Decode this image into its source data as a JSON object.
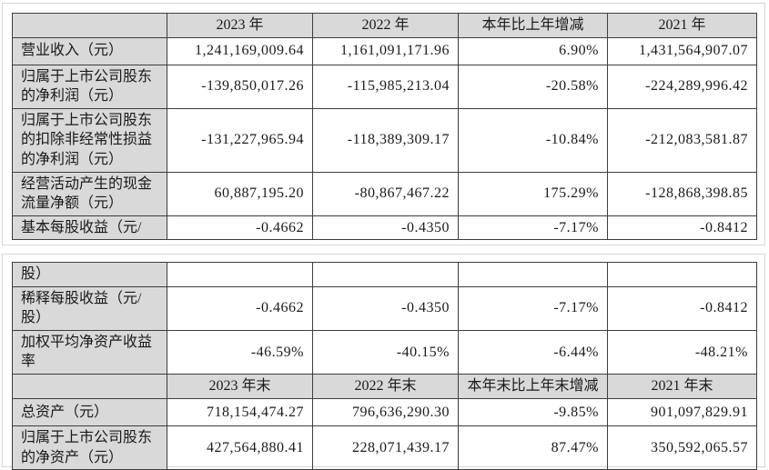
{
  "colors": {
    "header_cell_bg": "#d9d9d9",
    "table_border": "#3d3d3d",
    "page_frame_border": "#d6d6d6",
    "page_bg": "#ffffff",
    "text": "#1a1a1a"
  },
  "tables": [
    {
      "name": "key-financials-part1",
      "rows": [
        {
          "type": "header",
          "cells": [
            "",
            "2023 年",
            "2022 年",
            "本年比上年增减",
            "2021 年"
          ]
        },
        {
          "type": "data",
          "cells": [
            "营业收入（元）",
            "1,241,169,009.64",
            "1,161,091,171.96",
            "6.90%",
            "1,431,564,907.07"
          ]
        },
        {
          "type": "data",
          "cells": [
            "归属于上市公司股东的净利润（元）",
            "-139,850,017.26",
            "-115,985,213.04",
            "-20.58%",
            "-224,289,996.42"
          ]
        },
        {
          "type": "data",
          "cells": [
            "归属于上市公司股东的扣除非经常性损益的净利润（元）",
            "-131,227,965.94",
            "-118,389,309.17",
            "-10.84%",
            "-212,083,581.87"
          ]
        },
        {
          "type": "data",
          "cells": [
            "经营活动产生的现金流量净额（元）",
            "60,887,195.20",
            "-80,867,467.22",
            "175.29%",
            "-128,868,398.85"
          ]
        },
        {
          "type": "data",
          "cells": [
            "基本每股收益（元/",
            "-0.4662",
            "-0.4350",
            "-7.17%",
            "-0.8412"
          ]
        }
      ]
    },
    {
      "name": "key-financials-part2",
      "rows": [
        {
          "type": "data",
          "cells": [
            "股）",
            "",
            "",
            "",
            ""
          ]
        },
        {
          "type": "data",
          "cells": [
            "稀释每股收益（元/股）",
            "-0.4662",
            "-0.4350",
            "-7.17%",
            "-0.8412"
          ]
        },
        {
          "type": "data",
          "cells": [
            "加权平均净资产收益率",
            "-46.59%",
            "-40.15%",
            "-6.44%",
            "-48.21%"
          ]
        },
        {
          "type": "header",
          "cells": [
            "",
            "2023 年末",
            "2022 年末",
            "本年末比上年末增减",
            "2021 年末"
          ]
        },
        {
          "type": "data",
          "cells": [
            "总资产（元）",
            "718,154,474.27",
            "796,636,290.30",
            "-9.85%",
            "901,097,829.91"
          ]
        },
        {
          "type": "data",
          "cells": [
            "归属于上市公司股东的净资产（元）",
            "427,564,880.41",
            "228,071,439.17",
            "87.47%",
            "350,592,065.57"
          ]
        }
      ]
    }
  ]
}
